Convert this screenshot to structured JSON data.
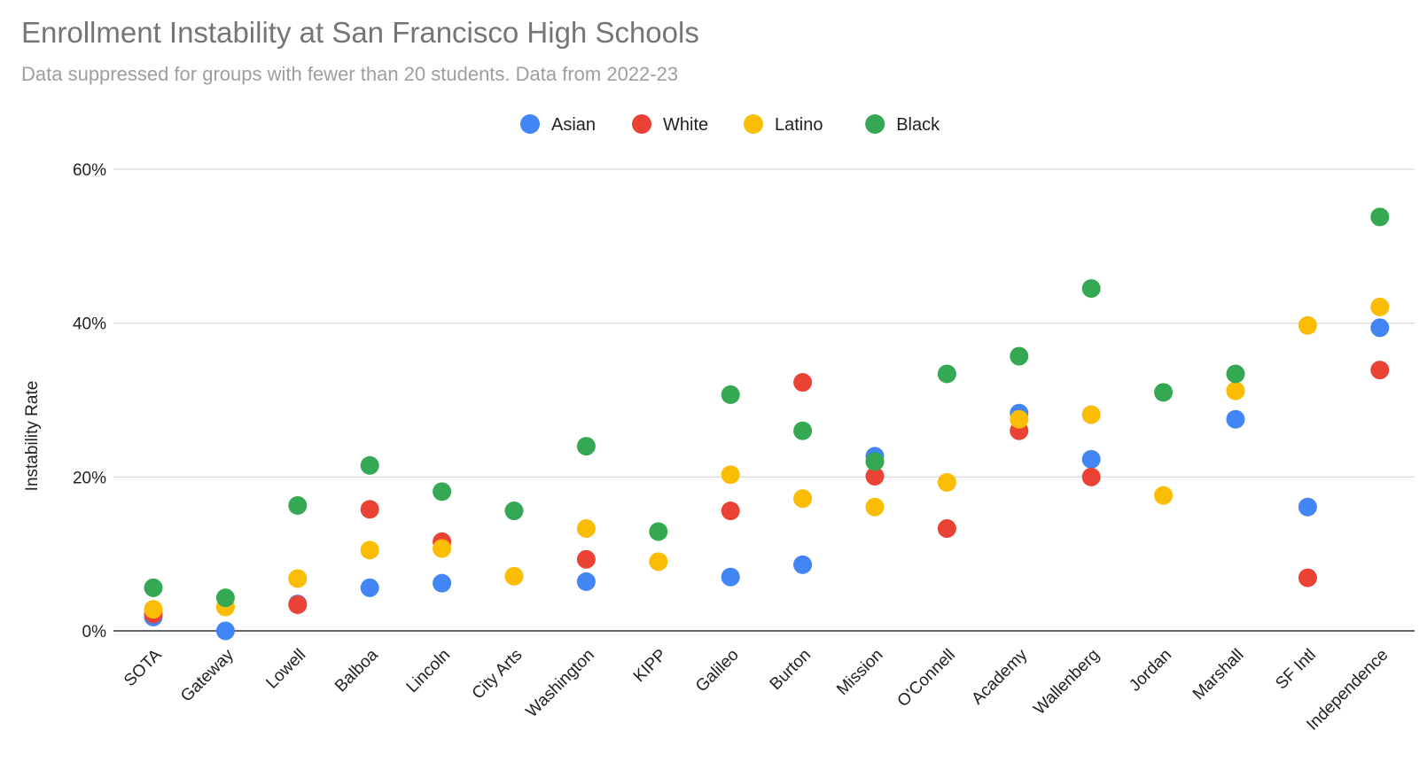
{
  "title": "Enrollment Instability at San Francisco High Schools",
  "subtitle": "Data suppressed for groups with fewer than 20 students. Data from 2022-23",
  "chart_data": {
    "type": "scatter",
    "title": "Enrollment Instability at San Francisco High Schools",
    "subtitle": "Data suppressed for groups with fewer than 20 students. Data from 2022-23",
    "xlabel": "",
    "ylabel": "Instability Rate",
    "ylim": [
      0,
      60
    ],
    "yticks": [
      "0%",
      "20%",
      "40%",
      "60%"
    ],
    "grid": true,
    "legend_position": "top",
    "categories": [
      "SOTA",
      "Gateway",
      "Lowell",
      "Balboa",
      "Lincoln",
      "City Arts",
      "Washington",
      "KIPP",
      "Galileo",
      "Burton",
      "Mission",
      "O'Connell",
      "Academy",
      "Wallenberg",
      "Jordan",
      "Marshall",
      "SF Intl",
      "Independence"
    ],
    "series": [
      {
        "name": "Asian",
        "color": "#4285F4",
        "values": [
          1.8,
          0,
          3.5,
          5.6,
          6.2,
          null,
          6.4,
          null,
          7.0,
          8.6,
          22.7,
          null,
          28.3,
          22.3,
          null,
          27.5,
          16.1,
          39.4
        ]
      },
      {
        "name": "White",
        "color": "#EA4335",
        "values": [
          2.2,
          null,
          3.4,
          15.8,
          11.6,
          null,
          9.3,
          null,
          15.6,
          32.3,
          20.1,
          13.3,
          26.0,
          20.0,
          null,
          null,
          6.9,
          33.9
        ]
      },
      {
        "name": "Latino",
        "color": "#FBBC04",
        "values": [
          2.8,
          3.1,
          6.8,
          10.5,
          10.7,
          7.1,
          13.3,
          9.0,
          20.3,
          17.2,
          16.1,
          19.3,
          27.5,
          28.1,
          17.6,
          31.2,
          39.7,
          42.1
        ]
      },
      {
        "name": "Black",
        "color": "#34A853",
        "values": [
          5.6,
          4.3,
          16.3,
          21.5,
          18.1,
          15.6,
          24.0,
          12.9,
          30.7,
          26.0,
          22.0,
          33.4,
          35.7,
          44.5,
          31.0,
          33.4,
          null,
          53.8
        ]
      }
    ]
  }
}
